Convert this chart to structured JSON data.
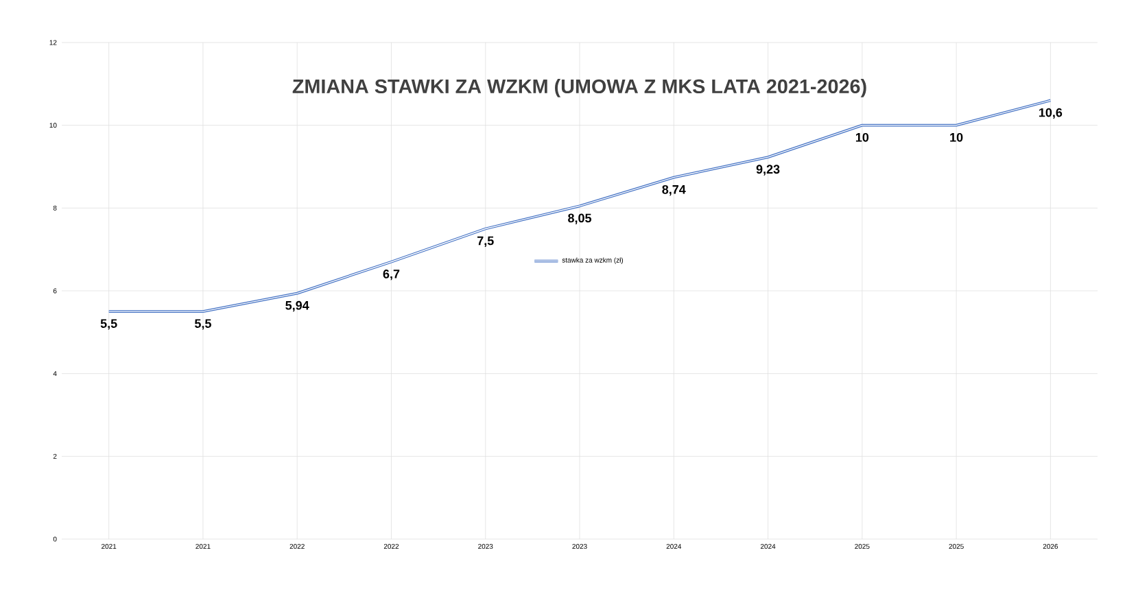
{
  "chart_data": {
    "type": "line",
    "title": "ZMIANA STAWKI ZA WZKM (UMOWA Z MKS LATA 2021-2026)",
    "categories": [
      "2021",
      "2021",
      "2022",
      "2022",
      "2023",
      "2023",
      "2024",
      "2024",
      "2025",
      "2025",
      "2026"
    ],
    "series": [
      {
        "name": "stawka za wzkm (zł)",
        "color": "#4472c4",
        "values": [
          5.5,
          5.5,
          5.94,
          6.7,
          7.5,
          8.05,
          8.74,
          9.23,
          10,
          10,
          10.6
        ],
        "value_labels": [
          "5,5",
          "5,5",
          "5,94",
          "6,7",
          "7,5",
          "8,05",
          "8,74",
          "9,23",
          "10",
          "10",
          "10,6"
        ]
      }
    ],
    "ylim": [
      0,
      12
    ],
    "yticks": [
      0,
      2,
      4,
      6,
      8,
      10,
      12
    ],
    "grid": true,
    "legend": "center",
    "marker": "none",
    "line_style": "solid"
  }
}
